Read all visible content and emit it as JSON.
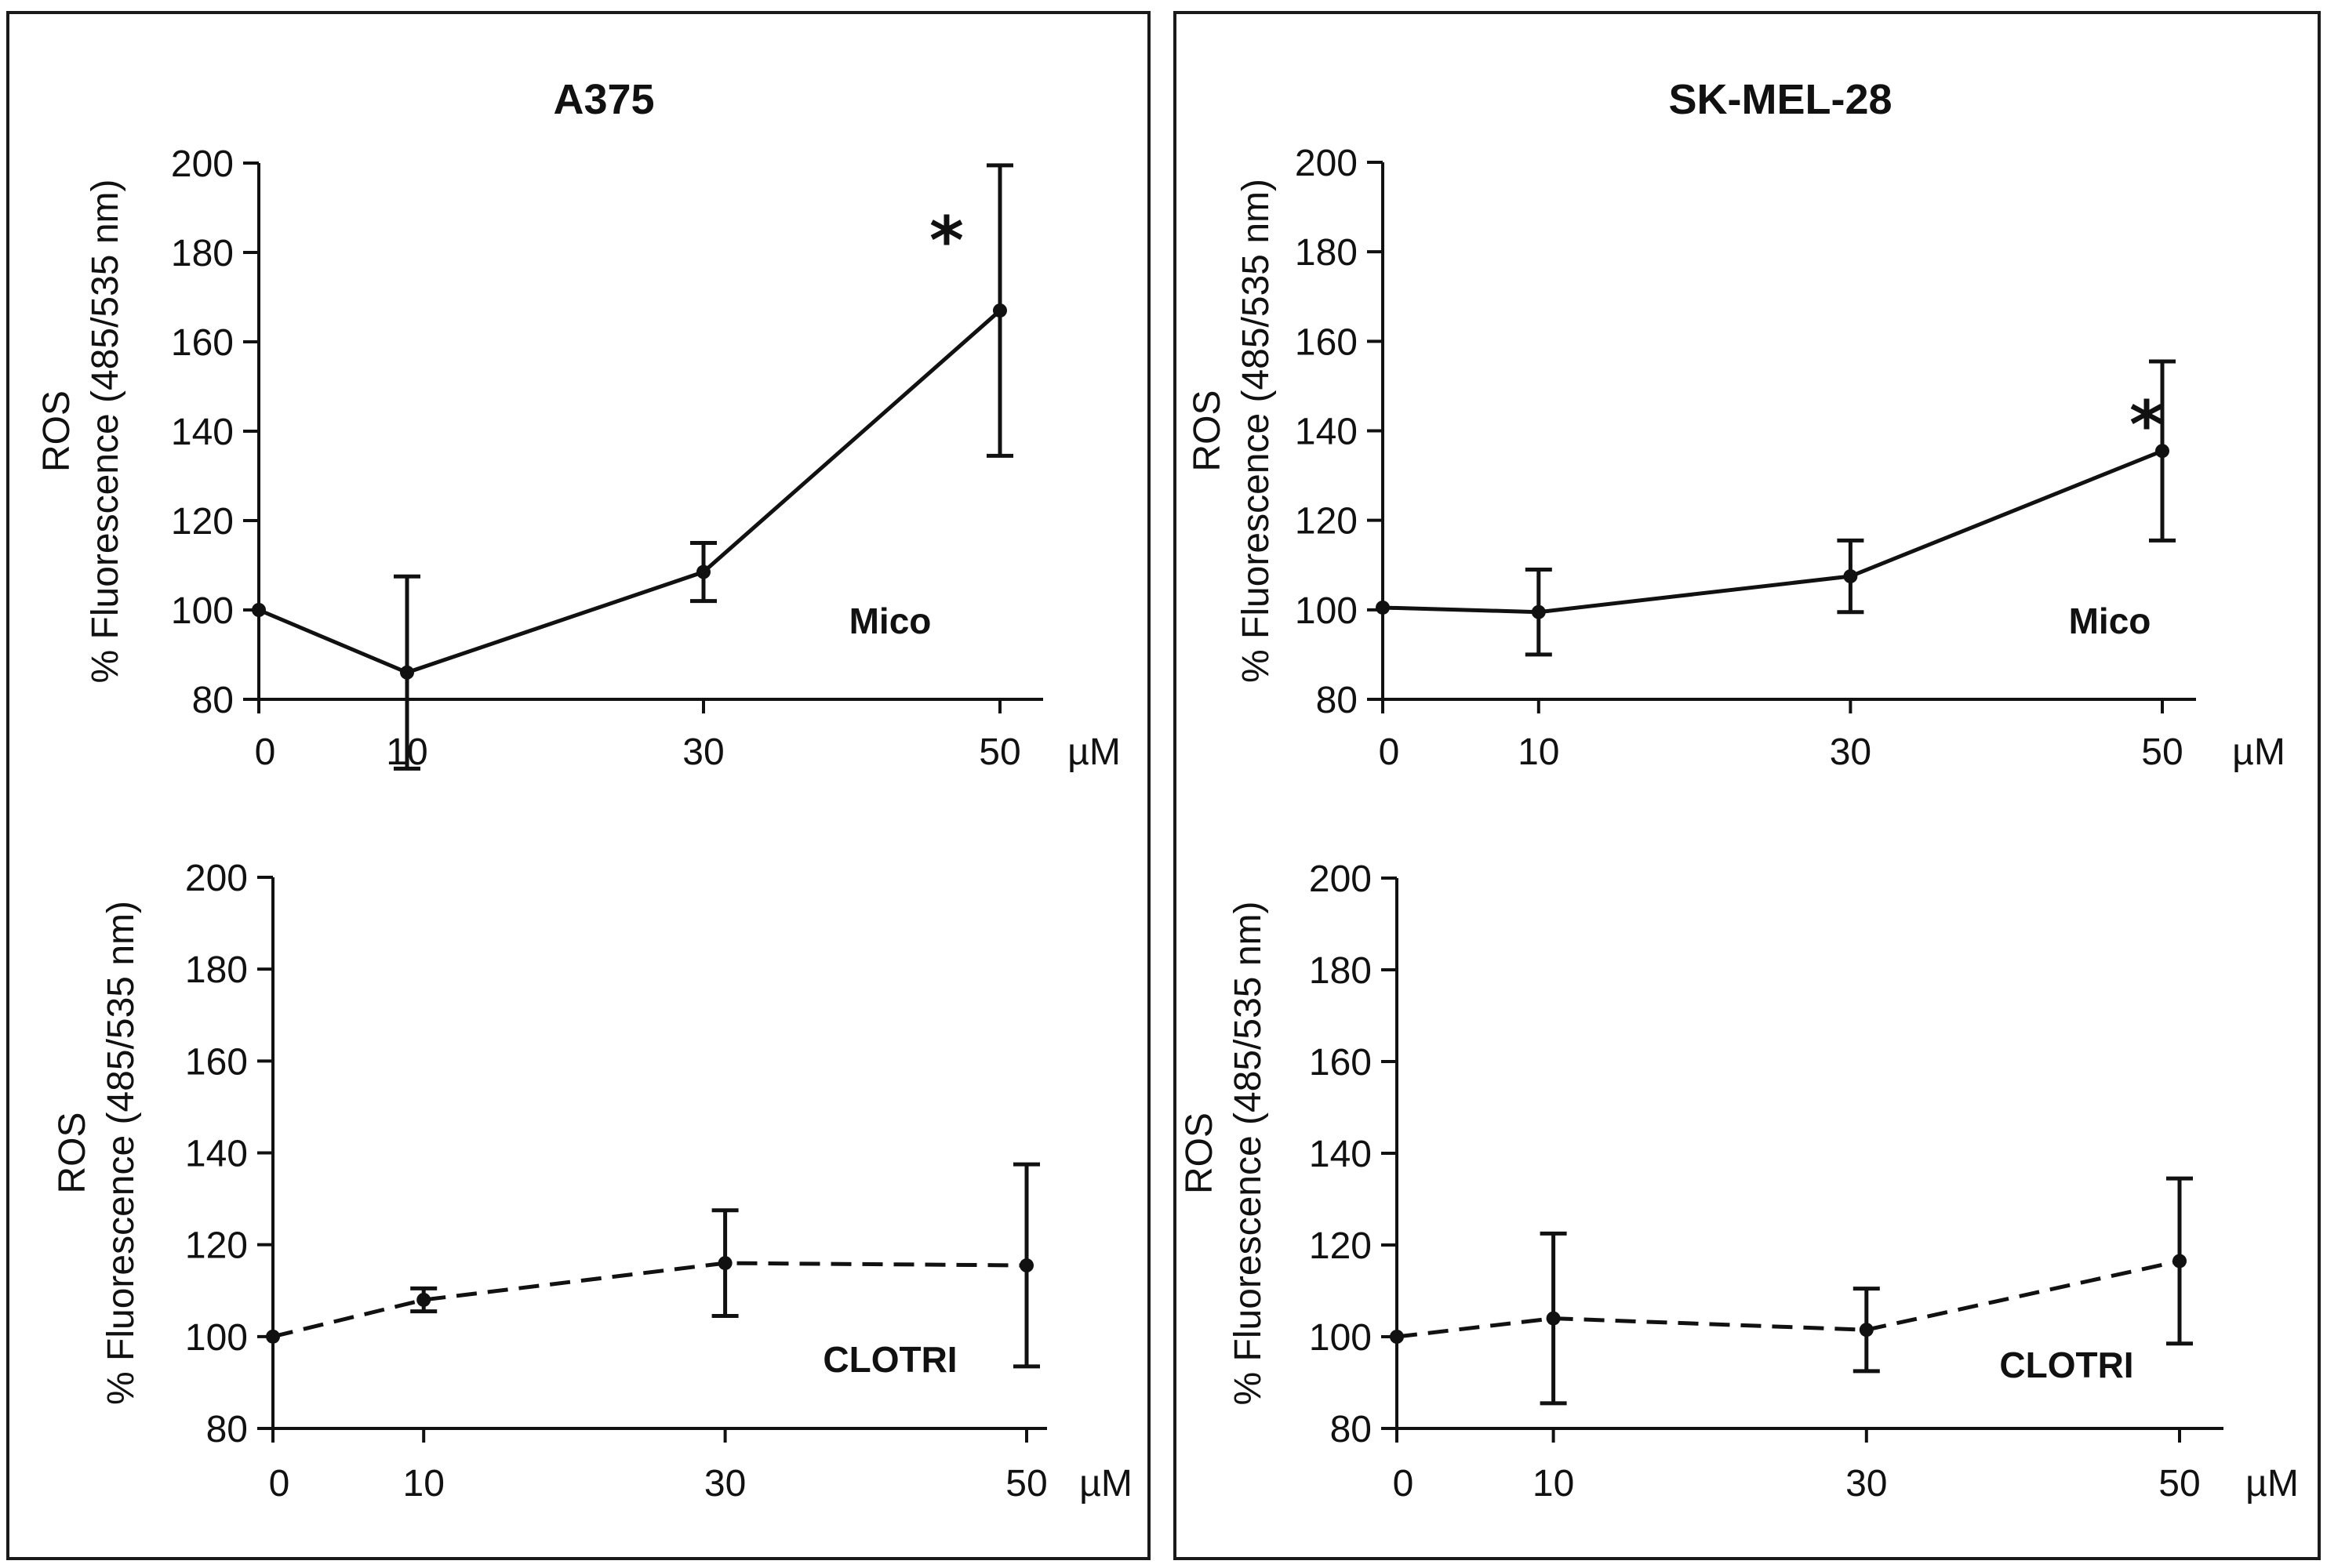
{
  "chart_data": [
    {
      "type": "line",
      "title": "A375",
      "ylabel_line1": "ROS",
      "ylabel_line2": "% Fluorescence (485/535 nm)",
      "x_unit": "µM",
      "x": [
        0,
        10,
        30,
        50
      ],
      "x_tick_labels": [
        "0",
        "10",
        "30",
        "50"
      ],
      "ylim": [
        80,
        200
      ],
      "y_ticks": [
        80,
        100,
        120,
        140,
        160,
        180,
        200
      ],
      "line_style": "solid",
      "series": [
        {
          "label": "Mico",
          "values": [
            100,
            86,
            108.5,
            167
          ],
          "error": [
            0,
            21.5,
            6.5,
            32.5
          ]
        }
      ],
      "significance": [
        {
          "x": 50,
          "label": "*"
        }
      ]
    },
    {
      "type": "line",
      "title": "SK-MEL-28",
      "ylabel_line1": "ROS",
      "ylabel_line2": "% Fluorescence (485/535 nm)",
      "x_unit": "µM",
      "x": [
        0,
        10,
        30,
        50
      ],
      "x_tick_labels": [
        "0",
        "10",
        "30",
        "50"
      ],
      "ylim": [
        80,
        200
      ],
      "y_ticks": [
        80,
        100,
        120,
        140,
        160,
        180,
        200
      ],
      "line_style": "solid",
      "series": [
        {
          "label": "Mico",
          "values": [
            100.5,
            99.5,
            107.5,
            135.5
          ],
          "error": [
            0,
            9.5,
            8,
            20
          ]
        }
      ],
      "significance": [
        {
          "x": 50,
          "label": "*"
        }
      ]
    },
    {
      "type": "line",
      "title": "",
      "ylabel_line1": "ROS",
      "ylabel_line2": "% Fluorescence (485/535 nm)",
      "x_unit": "µM",
      "x": [
        0,
        10,
        30,
        50
      ],
      "x_tick_labels": [
        "0",
        "10",
        "30",
        "50"
      ],
      "ylim": [
        80,
        200
      ],
      "y_ticks": [
        80,
        100,
        120,
        140,
        160,
        180,
        200
      ],
      "line_style": "dashed",
      "series": [
        {
          "label": "CLOTRI",
          "values": [
            100,
            108,
            116,
            115.5
          ],
          "error": [
            0,
            2.5,
            11.5,
            22
          ]
        }
      ],
      "significance": []
    },
    {
      "type": "line",
      "title": "",
      "ylabel_line1": "ROS",
      "ylabel_line2": "% Fluorescence (485/535 nm)",
      "x_unit": "µM",
      "x": [
        0,
        10,
        30,
        50
      ],
      "x_tick_labels": [
        "0",
        "10",
        "30",
        "50"
      ],
      "ylim": [
        80,
        200
      ],
      "y_ticks": [
        80,
        100,
        120,
        140,
        160,
        180,
        200
      ],
      "line_style": "dashed",
      "series": [
        {
          "label": "CLOTRI",
          "values": [
            100,
            104,
            101.5,
            116.5
          ],
          "error": [
            0,
            18.5,
            9,
            18
          ]
        }
      ],
      "significance": []
    }
  ]
}
